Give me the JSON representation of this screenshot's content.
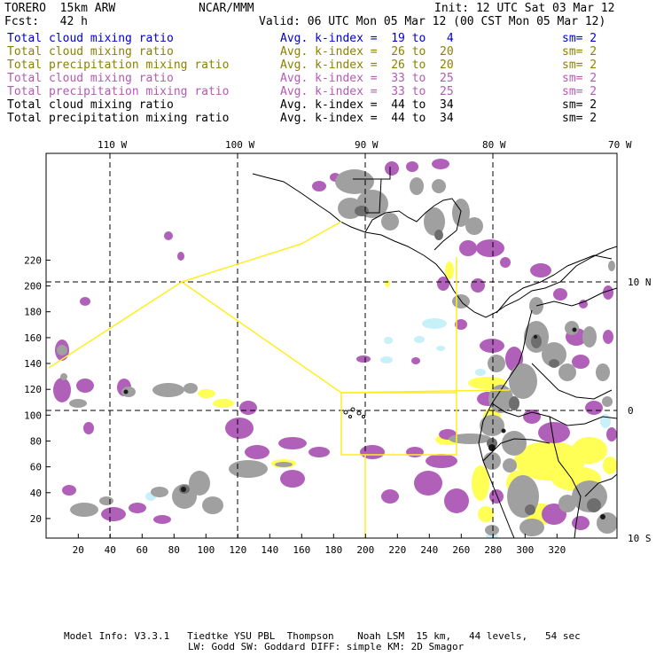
{
  "header": {
    "model": "TORERO  15km ARW",
    "center": "NCAR/MMM",
    "init": "Init: 12 UTC Sat 03 Mar 12",
    "fcst": "Fcst:   42 h",
    "valid": "Valid: 06 UTC Mon 05 Mar 12 (00 CST Mon 05 Mar 12)"
  },
  "legend": [
    {
      "field": "Total cloud mixing ratio",
      "index": "Avg. k-index =  19 to   4",
      "sm": "sm= 2",
      "color": "#0000cc"
    },
    {
      "field": "Total cloud mixing ratio",
      "index": "Avg. k-index =  26 to  20",
      "sm": "sm= 2",
      "color": "#8b8000"
    },
    {
      "field": "Total precipitation mixing ratio",
      "index": "Avg. k-index =  26 to  20",
      "sm": "sm= 2",
      "color": "#8b8000"
    },
    {
      "field": "Total cloud mixing ratio",
      "index": "Avg. k-index =  33 to  25",
      "sm": "sm= 2",
      "color": "#b45ab4"
    },
    {
      "field": "Total precipitation mixing ratio",
      "index": "Avg. k-index =  33 to  25",
      "sm": "sm= 2",
      "color": "#b45ab4"
    },
    {
      "field": "Total cloud mixing ratio",
      "index": "Avg. k-index =  44 to  34",
      "sm": "sm= 2",
      "color": "#000000"
    },
    {
      "field": "Total precipitation mixing ratio",
      "index": "Avg. k-index =  44 to  34",
      "sm": "sm= 2",
      "color": "#000000"
    }
  ],
  "axes": {
    "top_lon_labels": [
      "110 W",
      "100 W",
      "90 W",
      "80 W",
      "70 W"
    ],
    "right_lat_labels": [
      "10 N",
      "0",
      "10 S"
    ],
    "left_y_ticks": [
      "20",
      "40",
      "60",
      "80",
      "100",
      "120",
      "140",
      "160",
      "180",
      "200",
      "220"
    ],
    "bottom_x_ticks": [
      "20",
      "40",
      "60",
      "80",
      "100",
      "120",
      "140",
      "160",
      "180",
      "200",
      "220",
      "240",
      "260",
      "280",
      "300",
      "320"
    ]
  },
  "footer": {
    "line1": "Model Info: V3.3.1   Tiedtke YSU PBL  Thompson    Noah LSM  15 km,   44 levels,   54 sec",
    "line2": "LW: Godd SW: Goddard DIFF: simple KM: 2D Smagor"
  },
  "colors": {
    "gray": "#a0a0a0",
    "dark_gray": "#6e6e6e",
    "magenta": "#b060b8",
    "yellow": "#ffff55",
    "cyan": "#c8f0f8",
    "black_core": "#1a1a1a",
    "yellow_line": "#ffee22"
  }
}
